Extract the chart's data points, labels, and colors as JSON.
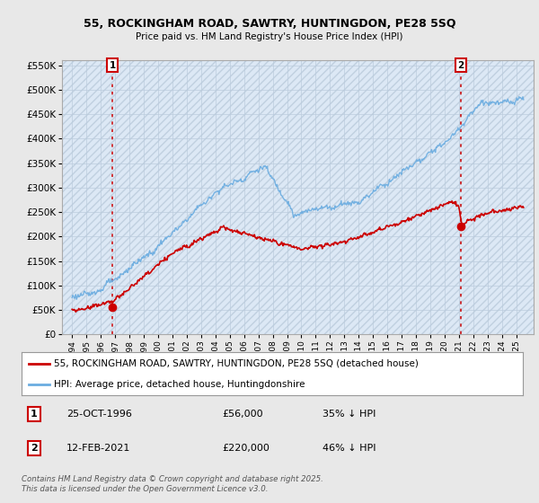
{
  "title1": "55, ROCKINGHAM ROAD, SAWTRY, HUNTINGDON, PE28 5SQ",
  "title2": "Price paid vs. HM Land Registry's House Price Index (HPI)",
  "sale1": {
    "date": 1996.82,
    "price": 56000,
    "label": "1",
    "pct": "35% ↓ HPI",
    "date_str": "25-OCT-1996",
    "price_str": "£56,000"
  },
  "sale2": {
    "date": 2021.12,
    "price": 220000,
    "label": "2",
    "pct": "46% ↓ HPI",
    "date_str": "12-FEB-2021",
    "price_str": "£220,000"
  },
  "legend_line1": "55, ROCKINGHAM ROAD, SAWTRY, HUNTINGDON, PE28 5SQ (detached house)",
  "legend_line2": "HPI: Average price, detached house, Huntingdonshire",
  "footer": "Contains HM Land Registry data © Crown copyright and database right 2025.\nThis data is licensed under the Open Government Licence v3.0.",
  "ylim": [
    0,
    560000
  ],
  "yticks": [
    0,
    50000,
    100000,
    150000,
    200000,
    250000,
    300000,
    350000,
    400000,
    450000,
    500000,
    550000
  ],
  "bg_color": "#e8e8e8",
  "plot_bg": "#dce8f5",
  "hpi_color": "#6aace0",
  "sale_color": "#cc0000",
  "vline_color": "#cc0000",
  "grid_color": "#bbccdd"
}
